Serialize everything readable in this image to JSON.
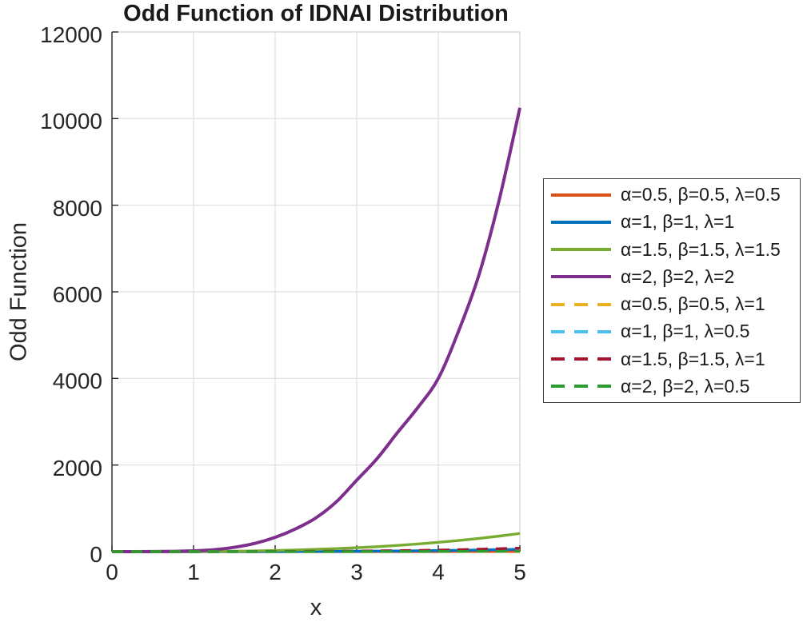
{
  "title": "Odd Function of IDNAI Distribution",
  "axes": {
    "xlabel": "x",
    "ylabel": "Odd Function",
    "xlim": [
      0,
      5
    ],
    "ylim": [
      0,
      12000
    ],
    "x_ticks": [
      0,
      1,
      2,
      3,
      4,
      5
    ],
    "y_ticks": [
      0,
      2000,
      4000,
      6000,
      8000,
      10000,
      12000
    ],
    "grid": true
  },
  "colors": {
    "background": "#ffffff",
    "text": "#262626",
    "grid_line": "#e0e0e0",
    "box_light": "#d6d6d6",
    "axis_dark": "#262626",
    "legend_border": "#3d3d3d"
  },
  "chart_data": {
    "type": "line",
    "title": "Odd Function of IDNAI Distribution",
    "xlabel": "x",
    "ylabel": "Odd Function",
    "xlim": [
      0,
      5
    ],
    "ylim": [
      0,
      12000
    ],
    "grid": true,
    "legend_position": "outside-right",
    "x": [
      0,
      0.25,
      0.5,
      0.75,
      1,
      1.25,
      1.5,
      1.75,
      2,
      2.25,
      2.5,
      2.75,
      3,
      3.25,
      3.5,
      3.75,
      4,
      4.25,
      4.5,
      4.75,
      5
    ],
    "series": [
      {
        "name": "α=0.5, β=0.5, λ=0.5",
        "color": "#D95319",
        "style": "solid",
        "values": [
          0,
          0,
          0.1,
          0.1,
          0.2,
          0.3,
          0.4,
          0.5,
          0.6,
          0.8,
          1,
          1.2,
          1.4,
          1.7,
          1.9,
          2.2,
          2.5,
          2.8,
          3.1,
          3.5,
          3.8
        ]
      },
      {
        "name": "α=1, β=1, λ=1",
        "color": "#0072BD",
        "style": "solid",
        "values": [
          0,
          0,
          0,
          0.1,
          0.2,
          0.4,
          0.8,
          1.4,
          2.2,
          3.4,
          4.9,
          6.8,
          9.2,
          12.2,
          15.8,
          20,
          25.2,
          31.2,
          38,
          46,
          55
        ]
      },
      {
        "name": "α=1.5, β=1.5, λ=1.5",
        "color": "#77AC30",
        "style": "solid",
        "values": [
          0,
          0.1,
          0.4,
          1.4,
          3.4,
          6.6,
          11,
          18,
          27,
          38,
          53,
          70,
          91,
          115,
          144,
          177,
          215,
          258,
          306,
          360,
          420
        ]
      },
      {
        "name": "α=2, β=2, λ=2",
        "color": "#7E2F8E",
        "style": "solid",
        "values": [
          0,
          0.3,
          2,
          7,
          18,
          45,
          100,
          190,
          330,
          525,
          780,
          1150,
          1650,
          2150,
          2750,
          3330,
          4000,
          5100,
          6400,
          8150,
          10250
        ]
      },
      {
        "name": "α=0.5, β=0.5, λ=1",
        "color": "#EDB120",
        "style": "dashed",
        "values": [
          0,
          0,
          0.1,
          0.1,
          0.2,
          0.4,
          0.5,
          0.7,
          1,
          1.2,
          1.5,
          1.8,
          2.2,
          2.5,
          2.9,
          3.4,
          3.8,
          4.3,
          4.9,
          5.4,
          6
        ]
      },
      {
        "name": "α=1, β=1, λ=0.5",
        "color": "#4DBEEE",
        "style": "dashed",
        "values": [
          0,
          0,
          0,
          0.1,
          0.2,
          0.4,
          0.7,
          1.1,
          1.6,
          2.3,
          3.1,
          4.2,
          5.4,
          6.9,
          8.6,
          10.5,
          12.8,
          15.3,
          18.2,
          21.4,
          25
        ]
      },
      {
        "name": "α=1.5, β=1.5, λ=1",
        "color": "#A2142F",
        "style": "dashed",
        "values": [
          0,
          0,
          0,
          0.1,
          0.3,
          0.6,
          1.2,
          2,
          3.3,
          4.9,
          7.1,
          9.9,
          13.4,
          17.7,
          23,
          29.1,
          36.6,
          45.4,
          55.3,
          66.9,
          80
        ]
      },
      {
        "name": "α=2, β=2, λ=0.5",
        "color": "#2E9B2E",
        "style": "dashed",
        "values": [
          0,
          0,
          0,
          0,
          0.1,
          0.2,
          0.3,
          0.4,
          0.6,
          0.9,
          1.3,
          1.7,
          2.2,
          2.7,
          3.4,
          4.2,
          5.1,
          6.1,
          7.3,
          8.6,
          10
        ]
      }
    ]
  }
}
